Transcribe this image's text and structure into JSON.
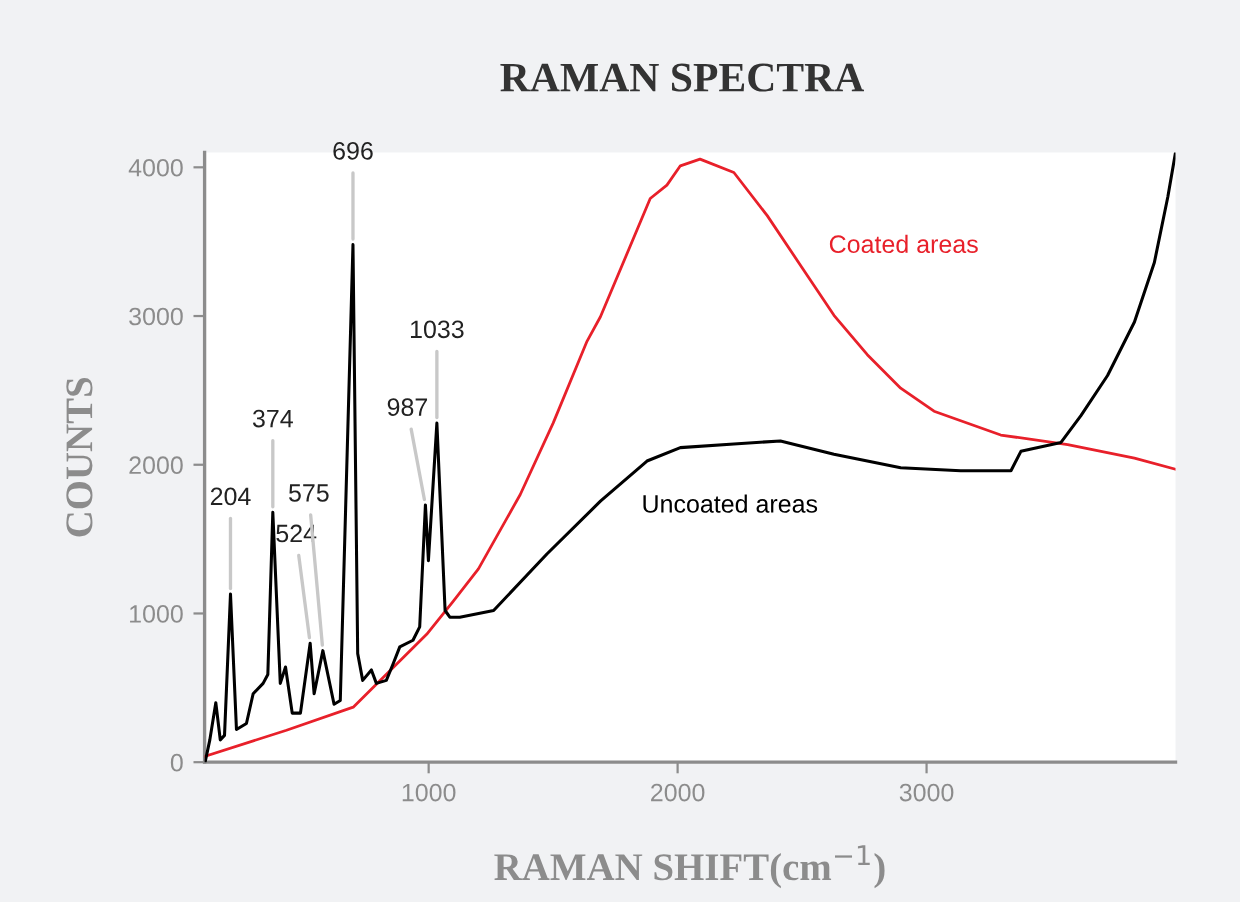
{
  "chart_data": {
    "type": "line",
    "title": "RAMAN SPECTRA",
    "xlabel": "RAMAN SHIFT(cm$^{−1}$)",
    "ylabel": "COUNTS",
    "xlim": [
      100,
      4000
    ],
    "ylim": [
      0,
      4100
    ],
    "xticks": [
      1000,
      2000,
      3000
    ],
    "yticks": [
      0,
      1000,
      2000,
      3000,
      4000
    ],
    "grid": false,
    "legend": false,
    "marker": "none",
    "line_style": "solid",
    "series": [
      {
        "name": "Coated areas",
        "color": "#e8202a",
        "x": [
          102,
          429,
          697,
          992,
          1100,
          1200,
          1368,
          1500,
          1636,
          1690,
          1890,
          1957,
          2011,
          2090,
          2226,
          2360,
          2494,
          2628,
          2762,
          2896,
          3030,
          3298,
          3567,
          3835,
          4000
        ],
        "values": [
          40,
          215,
          370,
          860,
          1085,
          1300,
          1800,
          2280,
          2830,
          2995,
          3790,
          3880,
          4010,
          4055,
          3965,
          3675,
          3340,
          3005,
          2740,
          2515,
          2360,
          2200,
          2135,
          2045,
          1970
        ]
      },
      {
        "name": "Uncoated areas",
        "color": "#000000",
        "x": [
          102,
          121,
          145,
          163,
          180,
          204,
          228,
          268,
          295,
          335,
          354,
          374,
          404,
          425,
          452,
          485,
          524,
          540,
          575,
          620,
          645,
          696,
          715,
          735,
          770,
          790,
          830,
          857,
          884,
          937,
          964,
          987,
          999,
          1033,
          1066,
          1085,
          1125,
          1261,
          1475,
          1690,
          1877,
          2011,
          2226,
          2413,
          2628,
          2896,
          3137,
          3339,
          3379,
          3540,
          3620,
          3727,
          3835,
          3915,
          3969,
          4000
        ],
        "values": [
          0,
          150,
          400,
          150,
          180,
          1130,
          220,
          260,
          460,
          530,
          590,
          1680,
          530,
          640,
          330,
          330,
          800,
          460,
          750,
          390,
          415,
          3480,
          730,
          550,
          620,
          530,
          550,
          660,
          775,
          820,
          910,
          1730,
          1355,
          2280,
          1020,
          975,
          975,
          1020,
          1400,
          1755,
          2025,
          2115,
          2140,
          2160,
          2070,
          1980,
          1960,
          1960,
          2090,
          2150,
          2330,
          2600,
          2960,
          3360,
          3800,
          4100
        ]
      }
    ],
    "annotations": [
      {
        "text": "204",
        "x": 204,
        "y": 1130
      },
      {
        "text": "374",
        "x": 374,
        "y": 1680
      },
      {
        "text": "524",
        "x": 524,
        "y": 800
      },
      {
        "text": "575",
        "x": 575,
        "y": 750
      },
      {
        "text": "696",
        "x": 696,
        "y": 3480
      },
      {
        "text": "987",
        "x": 987,
        "y": 1730
      },
      {
        "text": "1033",
        "x": 1033,
        "y": 2280
      }
    ]
  }
}
